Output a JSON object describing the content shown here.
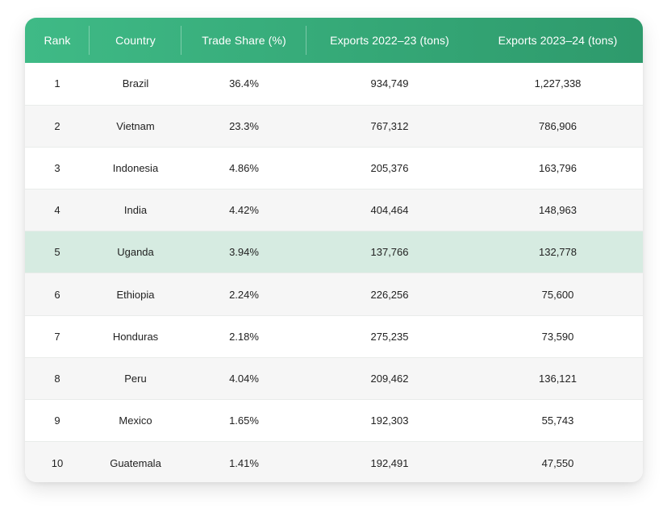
{
  "table": {
    "headers": [
      "Rank",
      "Country",
      "Trade Share (%)",
      "Exports 2022–23 (tons)",
      "Exports 2023–24 (tons)"
    ],
    "highlighted_rank": "5",
    "rows": [
      {
        "rank": "1",
        "country": "Brazil",
        "share": "36.4%",
        "exp_2022_23": "934,749",
        "exp_2023_24": "1,227,338"
      },
      {
        "rank": "2",
        "country": "Vietnam",
        "share": "23.3%",
        "exp_2022_23": "767,312",
        "exp_2023_24": "786,906"
      },
      {
        "rank": "3",
        "country": "Indonesia",
        "share": "4.86%",
        "exp_2022_23": "205,376",
        "exp_2023_24": "163,796"
      },
      {
        "rank": "4",
        "country": "India",
        "share": "4.42%",
        "exp_2022_23": "404,464",
        "exp_2023_24": "148,963"
      },
      {
        "rank": "5",
        "country": "Uganda",
        "share": "3.94%",
        "exp_2022_23": "137,766",
        "exp_2023_24": "132,778"
      },
      {
        "rank": "6",
        "country": "Ethiopia",
        "share": "2.24%",
        "exp_2022_23": "226,256",
        "exp_2023_24": "75,600"
      },
      {
        "rank": "7",
        "country": "Honduras",
        "share": "2.18%",
        "exp_2022_23": "275,235",
        "exp_2023_24": "73,590"
      },
      {
        "rank": "8",
        "country": "Peru",
        "share": "4.04%",
        "exp_2022_23": "209,462",
        "exp_2023_24": "136,121"
      },
      {
        "rank": "9",
        "country": "Mexico",
        "share": "1.65%",
        "exp_2022_23": "192,303",
        "exp_2023_24": "55,743"
      },
      {
        "rank": "10",
        "country": "Guatemala",
        "share": "1.41%",
        "exp_2022_23": "192,491",
        "exp_2023_24": "47,550"
      }
    ]
  },
  "colors": {
    "header_start": "#3fba86",
    "header_end": "#2e9a6c",
    "highlight_row": "#d6ebe1",
    "alt_row": "#f6f6f6"
  },
  "chart_data": {
    "type": "table",
    "columns": [
      "Rank",
      "Country",
      "Trade Share (%)",
      "Exports 2022–23 (tons)",
      "Exports 2023–24 (tons)"
    ],
    "rows": [
      [
        1,
        "Brazil",
        36.4,
        934749,
        1227338
      ],
      [
        2,
        "Vietnam",
        23.3,
        767312,
        786906
      ],
      [
        3,
        "Indonesia",
        4.86,
        205376,
        163796
      ],
      [
        4,
        "India",
        4.42,
        404464,
        148963
      ],
      [
        5,
        "Uganda",
        3.94,
        137766,
        132778
      ],
      [
        6,
        "Ethiopia",
        2.24,
        226256,
        75600
      ],
      [
        7,
        "Honduras",
        2.18,
        275235,
        73590
      ],
      [
        8,
        "Peru",
        4.04,
        209462,
        136121
      ],
      [
        9,
        "Mexico",
        1.65,
        192303,
        55743
      ],
      [
        10,
        "Guatemala",
        1.41,
        192491,
        47550
      ]
    ]
  }
}
